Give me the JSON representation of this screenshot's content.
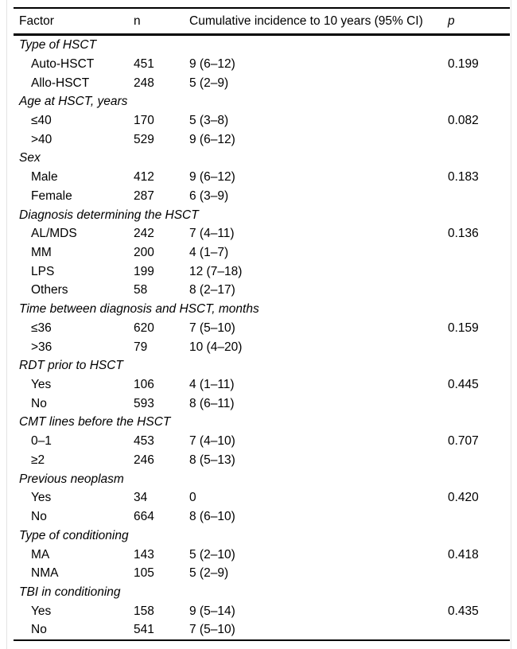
{
  "colors": {
    "text": "#000000",
    "background": "#ffffff",
    "table_rule": "#000000",
    "frame_line": "#e3e3e3"
  },
  "table": {
    "columns": [
      "Factor",
      "n",
      "Cumulative incidence to 10 years (95% CI)",
      "p"
    ],
    "sections": [
      {
        "label": "Type of HSCT",
        "rows": [
          {
            "factor": "Auto-HSCT",
            "n": "451",
            "ci": "9 (6–12)",
            "p": "0.199"
          },
          {
            "factor": "Allo-HSCT",
            "n": "248",
            "ci": "5 (2–9)",
            "p": ""
          }
        ]
      },
      {
        "label": "Age at HSCT, years",
        "rows": [
          {
            "factor": "≤40",
            "n": "170",
            "ci": "5 (3–8)",
            "p": "0.082"
          },
          {
            "factor": ">40",
            "n": "529",
            "ci": "9 (6–12)",
            "p": ""
          }
        ]
      },
      {
        "label": "Sex",
        "rows": [
          {
            "factor": "Male",
            "n": "412",
            "ci": "9 (6–12)",
            "p": "0.183"
          },
          {
            "factor": "Female",
            "n": "287",
            "ci": "6 (3–9)",
            "p": ""
          }
        ]
      },
      {
        "label": "Diagnosis determining the HSCT",
        "rows": [
          {
            "factor": "AL/MDS",
            "n": "242",
            "ci": "7 (4–11)",
            "p": "0.136"
          },
          {
            "factor": "MM",
            "n": "200",
            "ci": "4 (1–7)",
            "p": ""
          },
          {
            "factor": "LPS",
            "n": "199",
            "ci": "12 (7–18)",
            "p": ""
          },
          {
            "factor": "Others",
            "n": "58",
            "ci": "8 (2–17)",
            "p": ""
          }
        ]
      },
      {
        "label": "Time between diagnosis and HSCT, months",
        "rows": [
          {
            "factor": "≤36",
            "n": "620",
            "ci": "7 (5–10)",
            "p": "0.159"
          },
          {
            "factor": ">36",
            "n": "79",
            "ci": "10 (4–20)",
            "p": ""
          }
        ]
      },
      {
        "label": "RDT prior to HSCT",
        "rows": [
          {
            "factor": "Yes",
            "n": "106",
            "ci": "4 (1–11)",
            "p": "0.445"
          },
          {
            "factor": "No",
            "n": "593",
            "ci": "8 (6–11)",
            "p": ""
          }
        ]
      },
      {
        "label": "CMT lines before the HSCT",
        "rows": [
          {
            "factor": "0–1",
            "n": "453",
            "ci": "7 (4–10)",
            "p": "0.707"
          },
          {
            "factor": "≥2",
            "n": "246",
            "ci": "8 (5–13)",
            "p": ""
          }
        ]
      },
      {
        "label": "Previous neoplasm",
        "rows": [
          {
            "factor": "Yes",
            "n": "34",
            "ci": "0",
            "p": "0.420"
          },
          {
            "factor": "No",
            "n": "664",
            "ci": "8 (6–10)",
            "p": ""
          }
        ]
      },
      {
        "label": "Type of conditioning",
        "rows": [
          {
            "factor": "MA",
            "n": "143",
            "ci": "5 (2–10)",
            "p": "0.418"
          },
          {
            "factor": "NMA",
            "n": "105",
            "ci": "5 (2–9)",
            "p": ""
          }
        ]
      },
      {
        "label": "TBI in conditioning",
        "rows": [
          {
            "factor": "Yes",
            "n": "158",
            "ci": "9 (5–14)",
            "p": "0.435"
          },
          {
            "factor": "No",
            "n": "541",
            "ci": "7 (5–10)",
            "p": ""
          }
        ]
      }
    ]
  }
}
